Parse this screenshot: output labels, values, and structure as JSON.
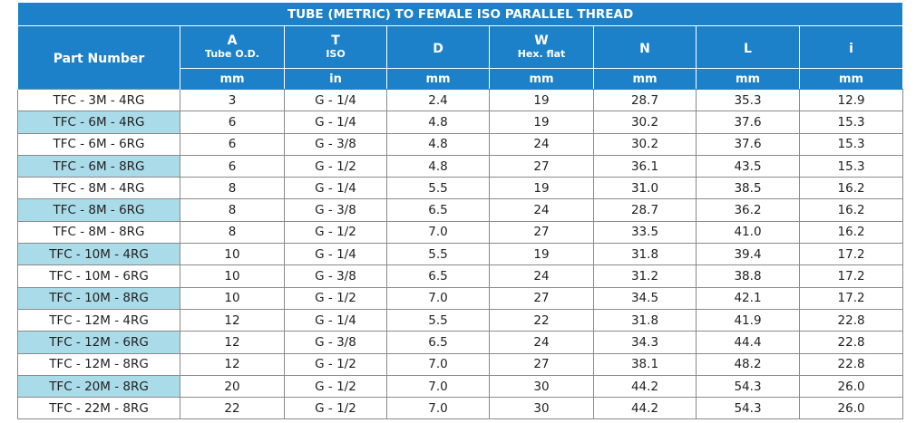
{
  "title": "TUBE (METRIC) TO FEMALE ISO PARALLEL THREAD",
  "headers": {
    "part": "Part Number",
    "a_sym": "A",
    "a_sub": "Tube O.D.",
    "t_sym": "T",
    "t_sub": "ISO",
    "d": "D",
    "w_sym": "W",
    "w_sub": "Hex. flat",
    "n": "N",
    "l": "L",
    "i": "i"
  },
  "units": [
    "mm",
    "in",
    "mm",
    "mm",
    "mm",
    "mm",
    "mm"
  ],
  "rows": [
    [
      "TFC - 3M - 4RG",
      "3",
      "G - 1/4",
      "2.4",
      "19",
      "28.7",
      "35.3",
      "12.9"
    ],
    [
      "TFC - 6M - 4RG",
      "6",
      "G - 1/4",
      "4.8",
      "19",
      "30.2",
      "37.6",
      "15.3"
    ],
    [
      "TFC - 6M - 6RG",
      "6",
      "G - 3/8",
      "4.8",
      "24",
      "30.2",
      "37.6",
      "15.3"
    ],
    [
      "TFC - 6M - 8RG",
      "6",
      "G - 1/2",
      "4.8",
      "27",
      "36.1",
      "43.5",
      "15.3"
    ],
    [
      "TFC - 8M - 4RG",
      "8",
      "G - 1/4",
      "5.5",
      "19",
      "31.0",
      "38.5",
      "16.2"
    ],
    [
      "TFC - 8M - 6RG",
      "8",
      "G - 3/8",
      "6.5",
      "24",
      "28.7",
      "36.2",
      "16.2"
    ],
    [
      "TFC - 8M - 8RG",
      "8",
      "G - 1/2",
      "7.0",
      "27",
      "33.5",
      "41.0",
      "16.2"
    ],
    [
      "TFC - 10M - 4RG",
      "10",
      "G - 1/4",
      "5.5",
      "19",
      "31.8",
      "39.4",
      "17.2"
    ],
    [
      "TFC - 10M - 6RG",
      "10",
      "G - 3/8",
      "6.5",
      "24",
      "31.2",
      "38.8",
      "17.2"
    ],
    [
      "TFC - 10M - 8RG",
      "10",
      "G - 1/2",
      "7.0",
      "27",
      "34.5",
      "42.1",
      "17.2"
    ],
    [
      "TFC - 12M - 4RG",
      "12",
      "G - 1/4",
      "5.5",
      "22",
      "31.8",
      "41.9",
      "22.8"
    ],
    [
      "TFC - 12M - 6RG",
      "12",
      "G - 3/8",
      "6.5",
      "24",
      "34.3",
      "44.4",
      "22.8"
    ],
    [
      "TFC - 12M - 8RG",
      "12",
      "G - 1/2",
      "7.0",
      "27",
      "38.1",
      "48.2",
      "22.8"
    ],
    [
      "TFC - 20M - 8RG",
      "20",
      "G - 1/2",
      "7.0",
      "30",
      "44.2",
      "54.3",
      "26.0"
    ],
    [
      "TFC - 22M - 8RG",
      "22",
      "G - 1/2",
      "7.0",
      "30",
      "44.2",
      "54.3",
      "26.0"
    ]
  ],
  "colors": {
    "header_bg": "#1c81c8",
    "highlight": "#a9dbe8"
  }
}
